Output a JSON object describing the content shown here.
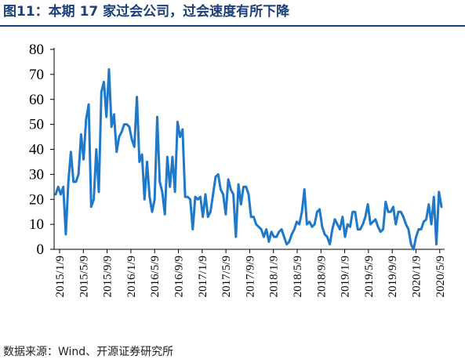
{
  "header": {
    "title": "图11：本期 17 家过会公司，过会速度有所下降"
  },
  "footer": {
    "source": "数据来源：Wind、开源证券研究所"
  },
  "colors": {
    "line": "#1f78c8",
    "title": "#1a3f7a",
    "axis": "#000000"
  },
  "chart_data": {
    "type": "line",
    "title": "图11：本期 17 家过会公司，过会速度有所下降",
    "xlabel": "",
    "ylabel": "",
    "ylim": [
      0,
      80
    ],
    "yticks": [
      0,
      10,
      20,
      30,
      40,
      50,
      60,
      70,
      80
    ],
    "xticks": [
      "2015/1/9",
      "2015/5/9",
      "2015/9/9",
      "2016/1/9",
      "2016/5/9",
      "2016/9/9",
      "2017/1/9",
      "2017/5/9",
      "2017/9/9",
      "2018/1/9",
      "2018/5/9",
      "2018/9/9",
      "2019/1/9",
      "2019/5/9",
      "2019/9/9",
      "2020/1/9",
      "2020/5/9"
    ],
    "grid": false,
    "legend": "none",
    "series": [
      {
        "values": [
          22,
          25,
          22,
          25,
          6,
          27,
          39,
          27,
          27,
          30,
          46,
          36,
          52,
          58,
          17,
          20,
          40,
          23,
          63,
          67,
          53,
          72,
          49,
          54,
          39,
          45,
          47,
          50,
          50,
          49,
          44,
          41,
          61,
          35,
          38,
          20,
          35,
          21,
          15,
          20,
          53,
          27,
          23,
          14,
          37,
          25,
          37,
          23,
          51,
          45,
          48,
          21,
          21,
          20,
          8,
          21,
          20,
          21,
          13,
          22,
          13,
          15,
          22,
          29,
          30,
          24,
          22,
          14,
          28,
          24,
          22,
          5,
          26,
          18,
          25,
          25,
          22,
          13,
          13,
          10,
          9,
          8,
          5,
          8,
          3,
          7,
          5,
          5,
          7,
          8,
          5,
          2,
          3,
          6,
          8,
          11,
          10,
          15,
          24,
          10,
          11,
          9,
          10,
          15,
          16,
          9,
          6,
          5,
          2,
          8,
          12,
          10,
          8,
          13,
          5,
          10,
          9,
          15,
          15,
          8,
          8,
          10,
          13,
          18,
          10,
          11,
          12,
          9,
          7,
          8,
          19,
          15,
          15,
          17,
          10,
          15,
          15,
          13,
          10,
          8,
          2,
          0,
          5,
          8,
          8,
          11,
          12,
          18,
          10,
          21,
          2,
          23,
          17
        ]
      }
    ]
  }
}
